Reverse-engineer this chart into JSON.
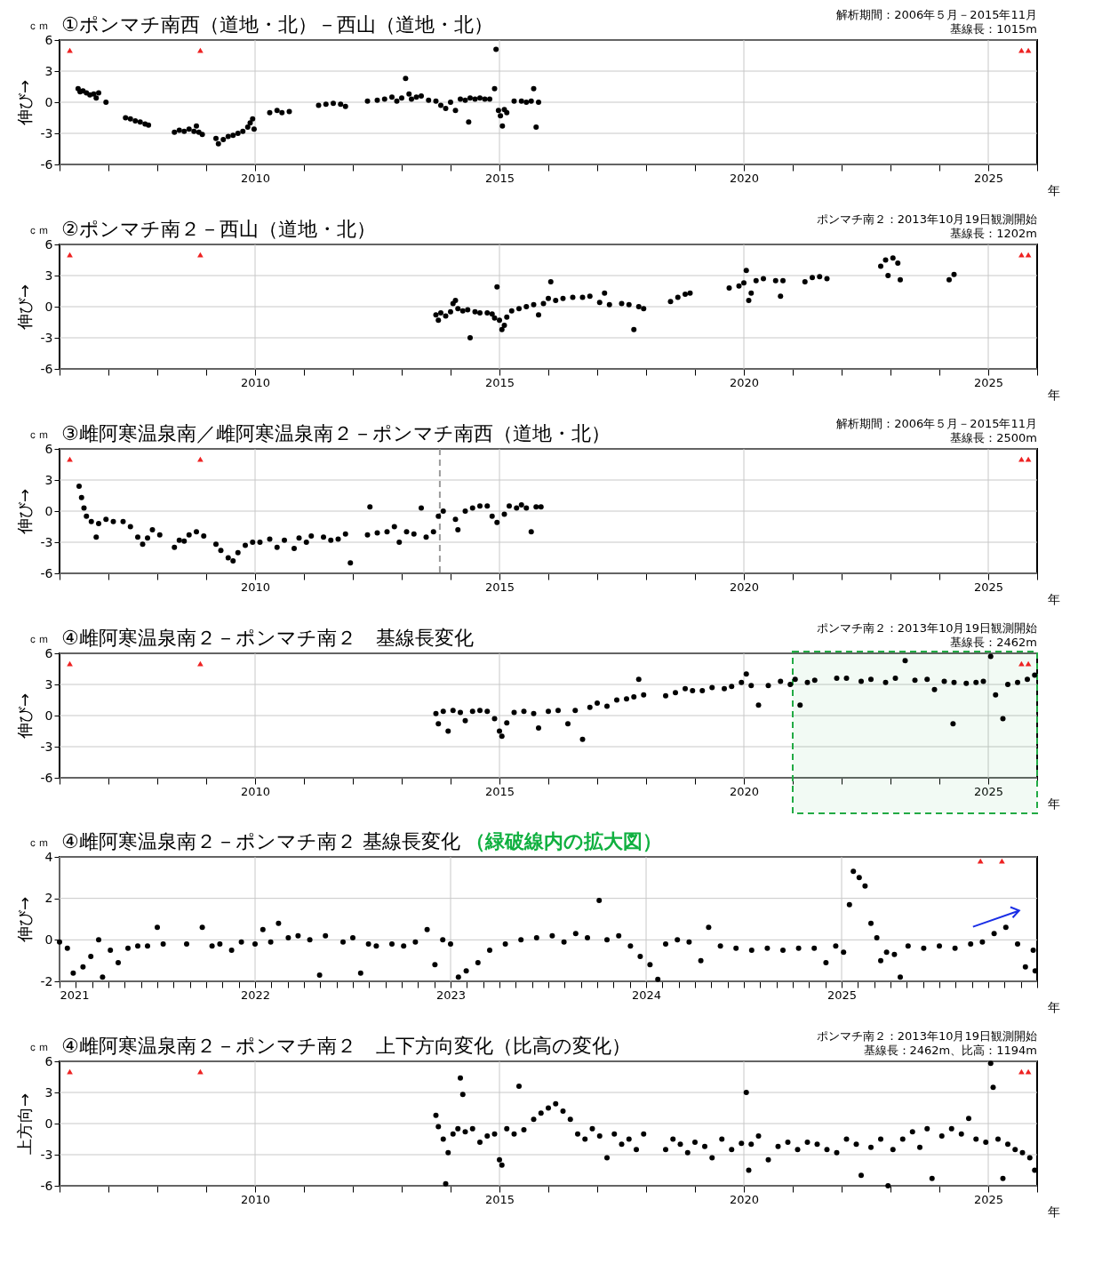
{
  "chart_data": [
    {
      "type": "scatter",
      "title": "①ポンマチ南西（道地・北）－西山（道地・北）",
      "annotations": [
        "ｃｍ",
        "解析期間：2006年５月－2015年11月",
        "基線長：1015m"
      ],
      "xlabel": "年",
      "ylabel": "伸び→",
      "xlim": [
        2006,
        2026
      ],
      "ylim": [
        -6,
        6
      ],
      "yticks": [
        -6,
        -3,
        0,
        3,
        6
      ],
      "grid": true,
      "marker": "circle",
      "xticks": [
        {
          "value": 2006,
          "label": null
        },
        {
          "value": 2007,
          "label": null
        },
        {
          "value": 2008,
          "label": null
        },
        {
          "value": 2009,
          "label": null
        },
        2010,
        {
          "value": 2011,
          "label": null
        },
        {
          "value": 2012,
          "label": null
        },
        {
          "value": 2013,
          "label": null
        },
        {
          "value": 2014,
          "label": null
        },
        2015,
        {
          "value": 2016,
          "label": null
        },
        {
          "value": 2017,
          "label": null
        },
        {
          "value": 2018,
          "label": null
        },
        {
          "value": 2019,
          "label": null
        },
        2020,
        {
          "value": 2021,
          "label": null
        },
        {
          "value": 2022,
          "label": null
        },
        {
          "value": 2023,
          "label": null
        },
        {
          "value": 2024,
          "label": null
        },
        2025,
        {
          "value": 2026,
          "label": null
        }
      ],
      "series": [
        {
          "color": "#000000",
          "x": [
            2006.38,
            2006.42,
            2006.48,
            2006.55,
            2006.62,
            2006.7,
            2006.75,
            2006.8,
            2006.95,
            2007.35,
            2007.45,
            2007.55,
            2007.65,
            2007.75,
            2007.82,
            2008.35,
            2008.45,
            2008.55,
            2008.65,
            2008.75,
            2008.8,
            2008.85,
            2008.92,
            2009.2,
            2009.25,
            2009.35,
            2009.45,
            2009.55,
            2009.65,
            2009.75,
            2009.85,
            2009.9,
            2009.95,
            2009.98,
            2010.3,
            2010.45,
            2010.55,
            2010.7,
            2011.3,
            2011.45,
            2011.6,
            2011.75,
            2011.85,
            2012.3,
            2012.5,
            2012.65,
            2012.8,
            2012.9,
            2013.0,
            2013.08,
            2013.15,
            2013.2,
            2013.3,
            2013.4,
            2013.55,
            2013.7,
            2013.8,
            2013.9,
            2014.0,
            2014.1,
            2014.2,
            2014.3,
            2014.37,
            2014.4,
            2014.5,
            2014.6,
            2014.7,
            2014.8,
            2014.9,
            2014.93,
            2014.98,
            2015.02,
            2015.06,
            2015.1,
            2015.15,
            2015.3,
            2015.45,
            2015.55,
            2015.65,
            2015.7,
            2015.75,
            2015.8
          ],
          "values": [
            1.3,
            1.0,
            1.1,
            0.9,
            0.7,
            0.8,
            0.4,
            0.9,
            0.0,
            -1.5,
            -1.6,
            -1.8,
            -1.9,
            -2.1,
            -2.2,
            -2.9,
            -2.7,
            -2.8,
            -2.6,
            -2.8,
            -2.3,
            -2.9,
            -3.1,
            -3.5,
            -4.0,
            -3.6,
            -3.3,
            -3.2,
            -3.0,
            -2.8,
            -2.4,
            -2.0,
            -1.6,
            -2.6,
            -1.0,
            -0.8,
            -1.0,
            -0.9,
            -0.3,
            -0.2,
            -0.1,
            -0.2,
            -0.4,
            0.1,
            0.2,
            0.3,
            0.5,
            0.1,
            0.4,
            2.3,
            0.8,
            0.3,
            0.5,
            0.6,
            0.2,
            0.1,
            -0.3,
            -0.6,
            0.0,
            -0.8,
            0.3,
            0.2,
            -1.9,
            0.4,
            0.3,
            0.4,
            0.3,
            0.3,
            1.3,
            5.1,
            -0.8,
            -1.3,
            -2.3,
            -0.7,
            -1.0,
            0.1,
            0.1,
            0.0,
            0.1,
            1.3,
            -2.4,
            0.0
          ]
        },
        {
          "color": "#ee2222",
          "marker": "triangle",
          "x": [
            2006.21,
            2008.88,
            2025.68,
            2025.82
          ],
          "values": [
            5,
            5,
            5,
            5
          ]
        }
      ]
    },
    {
      "type": "scatter",
      "title": "②ポンマチ南２－西山（道地・北）",
      "annotations": [
        "ｃｍ",
        "ポンマチ南２：2013年10月19日観測開始",
        "基線長：1202m"
      ],
      "xlabel": "年",
      "ylabel": "伸び→",
      "xlim": [
        2006,
        2026
      ],
      "ylim": [
        -6,
        6
      ],
      "yticks": [
        -6,
        -3,
        0,
        3,
        6
      ],
      "grid": true,
      "marker": "circle",
      "xticks": [
        {
          "value": 2006,
          "label": null
        },
        {
          "value": 2007,
          "label": null
        },
        {
          "value": 2008,
          "label": null
        },
        {
          "value": 2009,
          "label": null
        },
        2010,
        {
          "value": 2011,
          "label": null
        },
        {
          "value": 2012,
          "label": null
        },
        {
          "value": 2013,
          "label": null
        },
        {
          "value": 2014,
          "label": null
        },
        2015,
        {
          "value": 2016,
          "label": null
        },
        {
          "value": 2017,
          "label": null
        },
        {
          "value": 2018,
          "label": null
        },
        {
          "value": 2019,
          "label": null
        },
        2020,
        {
          "value": 2021,
          "label": null
        },
        {
          "value": 2022,
          "label": null
        },
        {
          "value": 2023,
          "label": null
        },
        {
          "value": 2024,
          "label": null
        },
        2025,
        {
          "value": 2026,
          "label": null
        }
      ],
      "series": [
        {
          "color": "#000000",
          "x": [
            2013.7,
            2013.75,
            2013.8,
            2013.9,
            2014.0,
            2014.05,
            2014.1,
            2014.15,
            2014.25,
            2014.35,
            2014.4,
            2014.5,
            2014.6,
            2014.75,
            2014.85,
            2014.9,
            2014.95,
            2015.0,
            2015.05,
            2015.1,
            2015.15,
            2015.25,
            2015.4,
            2015.55,
            2015.7,
            2015.8,
            2015.9,
            2016.0,
            2016.05,
            2016.15,
            2016.3,
            2016.5,
            2016.7,
            2016.85,
            2017.05,
            2017.15,
            2017.25,
            2017.5,
            2017.65,
            2017.75,
            2017.85,
            2017.95,
            2018.5,
            2018.65,
            2018.8,
            2018.9,
            2019.7,
            2019.9,
            2020.0,
            2020.05,
            2020.1,
            2020.15,
            2020.25,
            2020.4,
            2020.65,
            2020.75,
            2020.8,
            2021.25,
            2021.4,
            2021.55,
            2021.7,
            2022.8,
            2022.9,
            2022.95,
            2023.05,
            2023.15,
            2023.2,
            2024.2,
            2024.3
          ],
          "values": [
            -0.8,
            -1.3,
            -0.6,
            -0.9,
            -0.5,
            0.3,
            0.6,
            -0.2,
            -0.4,
            -0.3,
            -3.0,
            -0.5,
            -0.6,
            -0.6,
            -0.7,
            -1.1,
            1.9,
            -1.3,
            -2.2,
            -1.8,
            -1.0,
            -0.4,
            -0.2,
            0.0,
            0.2,
            -0.8,
            0.3,
            0.8,
            2.4,
            0.6,
            0.8,
            0.9,
            0.9,
            1.0,
            0.4,
            1.3,
            0.2,
            0.3,
            0.2,
            -2.2,
            0.0,
            -0.2,
            0.5,
            0.9,
            1.2,
            1.3,
            1.8,
            2.0,
            2.3,
            3.5,
            0.6,
            1.3,
            2.5,
            2.7,
            2.5,
            1.0,
            2.5,
            2.4,
            2.8,
            2.9,
            2.7,
            3.9,
            4.5,
            3.0,
            4.7,
            4.2,
            2.6,
            2.6,
            3.1
          ]
        },
        {
          "color": "#ee2222",
          "marker": "triangle",
          "x": [
            2006.21,
            2008.88,
            2025.68,
            2025.82
          ],
          "values": [
            5,
            5,
            5,
            5
          ]
        }
      ]
    },
    {
      "type": "scatter",
      "title": "③雌阿寒温泉南／雌阿寒温泉南２－ポンマチ南西（道地・北）",
      "annotations": [
        "ｃｍ",
        "解析期間：2006年５月－2015年11月",
        "基線長：2500m"
      ],
      "xlabel": "年",
      "ylabel": "伸び→",
      "xlim": [
        2006,
        2026
      ],
      "ylim": [
        -6,
        6
      ],
      "yticks": [
        -6,
        -3,
        0,
        3,
        6
      ],
      "grid": true,
      "marker": "circle",
      "xticks": [
        {
          "value": 2006,
          "label": null
        },
        {
          "value": 2007,
          "label": null
        },
        {
          "value": 2008,
          "label": null
        },
        {
          "value": 2009,
          "label": null
        },
        2010,
        {
          "value": 2011,
          "label": null
        },
        {
          "value": 2012,
          "label": null
        },
        {
          "value": 2013,
          "label": null
        },
        {
          "value": 2014,
          "label": null
        },
        2015,
        {
          "value": 2016,
          "label": null
        },
        {
          "value": 2017,
          "label": null
        },
        {
          "value": 2018,
          "label": null
        },
        {
          "value": 2019,
          "label": null
        },
        2020,
        {
          "value": 2021,
          "label": null
        },
        {
          "value": 2022,
          "label": null
        },
        {
          "value": 2023,
          "label": null
        },
        {
          "value": 2024,
          "label": null
        },
        2025,
        {
          "value": 2026,
          "label": null
        }
      ],
      "ref_lines": [
        {
          "axis": "x",
          "value": 2013.78,
          "color": "#999999",
          "line_style": "dashed"
        }
      ],
      "series": [
        {
          "color": "#000000",
          "x": [
            2006.4,
            2006.45,
            2006.5,
            2006.55,
            2006.65,
            2006.75,
            2006.8,
            2006.95,
            2007.1,
            2007.3,
            2007.45,
            2007.6,
            2007.7,
            2007.8,
            2007.9,
            2008.05,
            2008.35,
            2008.45,
            2008.55,
            2008.65,
            2008.8,
            2008.95,
            2009.2,
            2009.3,
            2009.45,
            2009.55,
            2009.65,
            2009.8,
            2009.95,
            2010.1,
            2010.3,
            2010.45,
            2010.6,
            2010.8,
            2010.9,
            2011.05,
            2011.15,
            2011.4,
            2011.55,
            2011.7,
            2011.85,
            2011.95,
            2012.3,
            2012.35,
            2012.5,
            2012.7,
            2012.85,
            2012.95,
            2013.1,
            2013.25,
            2013.4,
            2013.5,
            2013.65,
            2013.75,
            2013.85,
            2014.1,
            2014.15,
            2014.3,
            2014.45,
            2014.6,
            2014.75,
            2014.85,
            2014.95,
            2015.1,
            2015.2,
            2015.35,
            2015.45,
            2015.55,
            2015.65,
            2015.75,
            2015.85
          ],
          "values": [
            2.4,
            1.3,
            0.3,
            -0.5,
            -1.0,
            -2.5,
            -1.2,
            -0.8,
            -1.0,
            -1.0,
            -1.5,
            -2.5,
            -3.2,
            -2.6,
            -1.8,
            -2.3,
            -3.5,
            -2.8,
            -2.9,
            -2.3,
            -2.0,
            -2.4,
            -3.2,
            -3.8,
            -4.5,
            -4.8,
            -4.0,
            -3.3,
            -3.0,
            -3.0,
            -2.7,
            -3.5,
            -2.8,
            -3.6,
            -2.6,
            -3.0,
            -2.4,
            -2.5,
            -2.8,
            -2.7,
            -2.2,
            -5.0,
            -2.3,
            0.4,
            -2.1,
            -2.0,
            -1.5,
            -3.0,
            -2.0,
            -2.2,
            0.3,
            -2.5,
            -2.0,
            -0.5,
            0.0,
            -0.8,
            -1.8,
            0.0,
            0.3,
            0.5,
            0.5,
            -0.5,
            -1.1,
            -0.3,
            0.5,
            0.3,
            0.6,
            0.3,
            -2.0,
            0.4,
            0.4
          ]
        },
        {
          "color": "#ee2222",
          "marker": "triangle",
          "x": [
            2006.21,
            2008.88,
            2025.68,
            2025.82
          ],
          "values": [
            5,
            5,
            5,
            5
          ]
        }
      ]
    },
    {
      "type": "scatter",
      "title": "④雌阿寒温泉南２－ポンマチ南２　基線長変化",
      "annotations": [
        "ｃｍ",
        "ポンマチ南２：2013年10月19日観測開始",
        "基線長：2462m"
      ],
      "xlabel": "年",
      "ylabel": "伸び→",
      "xlim": [
        2006,
        2026
      ],
      "ylim": [
        -6,
        6
      ],
      "yticks": [
        -6,
        -3,
        0,
        3,
        6
      ],
      "grid": true,
      "marker": "circle",
      "xticks": [
        {
          "value": 2006,
          "label": null
        },
        {
          "value": 2007,
          "label": null
        },
        {
          "value": 2008,
          "label": null
        },
        {
          "value": 2009,
          "label": null
        },
        2010,
        {
          "value": 2011,
          "label": null
        },
        {
          "value": 2012,
          "label": null
        },
        {
          "value": 2013,
          "label": null
        },
        {
          "value": 2014,
          "label": null
        },
        2015,
        {
          "value": 2016,
          "label": null
        },
        {
          "value": 2017,
          "label": null
        },
        {
          "value": 2018,
          "label": null
        },
        {
          "value": 2019,
          "label": null
        },
        2020,
        {
          "value": 2021,
          "label": null
        },
        {
          "value": 2022,
          "label": null
        },
        {
          "value": 2023,
          "label": null
        },
        {
          "value": 2024,
          "label": null
        },
        2025,
        {
          "value": 2026,
          "label": null
        }
      ],
      "bands": [
        {
          "axis": "x",
          "from": 2021,
          "to": 2026,
          "color": "#22aa44"
        }
      ],
      "series": [
        {
          "color": "#000000",
          "x": [
            2013.7,
            2013.75,
            2013.85,
            2013.95,
            2014.05,
            2014.2,
            2014.3,
            2014.45,
            2014.6,
            2014.75,
            2014.9,
            2015.0,
            2015.05,
            2015.15,
            2015.3,
            2015.5,
            2015.7,
            2015.8,
            2016.0,
            2016.2,
            2016.4,
            2016.55,
            2016.7,
            2016.85,
            2017.0,
            2017.2,
            2017.4,
            2017.6,
            2017.75,
            2017.85,
            2017.95,
            2018.4,
            2018.6,
            2018.8,
            2018.95,
            2019.15,
            2019.35,
            2019.6,
            2019.75,
            2019.95,
            2020.05,
            2020.15,
            2020.3,
            2020.5,
            2020.75,
            2020.95,
            2021.05,
            2021.15,
            2021.3,
            2021.45,
            2021.9,
            2022.1,
            2022.4,
            2022.6,
            2022.9,
            2023.1,
            2023.3,
            2023.5,
            2023.75,
            2023.9,
            2024.1,
            2024.28,
            2024.3,
            2024.55,
            2024.75,
            2024.9,
            2025.05,
            2025.15,
            2025.3,
            2025.4,
            2025.6,
            2025.8,
            2025.95
          ],
          "values": [
            0.2,
            -0.8,
            0.4,
            -1.5,
            0.5,
            0.3,
            -0.5,
            0.4,
            0.5,
            0.4,
            -0.3,
            -1.5,
            -2.0,
            -0.7,
            0.3,
            0.4,
            0.2,
            -1.2,
            0.4,
            0.5,
            -0.8,
            0.5,
            -2.3,
            0.8,
            1.2,
            0.9,
            1.5,
            1.6,
            1.8,
            3.5,
            2.0,
            1.9,
            2.2,
            2.6,
            2.4,
            2.4,
            2.7,
            2.6,
            2.8,
            3.2,
            4.0,
            2.9,
            1.0,
            2.9,
            3.3,
            3.0,
            3.5,
            1.0,
            3.2,
            3.4,
            3.6,
            3.6,
            3.3,
            3.5,
            3.2,
            3.6,
            5.3,
            3.4,
            3.5,
            2.5,
            3.3,
            -0.8,
            3.2,
            3.1,
            3.2,
            3.3,
            5.7,
            2.0,
            -0.3,
            3.0,
            3.2,
            3.5,
            3.9
          ]
        },
        {
          "color": "#ee2222",
          "marker": "triangle",
          "x": [
            2006.21,
            2008.88,
            2025.68,
            2025.82
          ],
          "values": [
            5,
            5,
            5,
            5
          ]
        }
      ]
    },
    {
      "type": "scatter",
      "title": "④雌阿寒温泉南２－ポンマチ南２ 基線長変化",
      "subtitle": "（緑破線内の拡大図）",
      "annotations": [
        "ｃｍ"
      ],
      "xlabel": "年",
      "ylabel": "伸び→",
      "xlim": [
        2021,
        2026
      ],
      "ylim": [
        -2,
        4
      ],
      "yticks": [
        -2,
        0,
        2,
        4
      ],
      "grid": true,
      "marker": "circle",
      "xticks": [
        2021,
        {
          "value": 2021.083,
          "label": null
        },
        {
          "value": 2021.167,
          "label": null
        },
        {
          "value": 2021.25,
          "label": null
        },
        {
          "value": 2021.333,
          "label": null
        },
        {
          "value": 2021.417,
          "label": null
        },
        {
          "value": 2021.5,
          "label": null
        },
        {
          "value": 2021.583,
          "label": null
        },
        {
          "value": 2021.667,
          "label": null
        },
        {
          "value": 2021.75,
          "label": null
        },
        {
          "value": 2021.833,
          "label": null
        },
        {
          "value": 2021.917,
          "label": null
        },
        2022,
        {
          "value": 2022.083,
          "label": null
        },
        {
          "value": 2022.167,
          "label": null
        },
        {
          "value": 2022.25,
          "label": null
        },
        {
          "value": 2022.333,
          "label": null
        },
        {
          "value": 2022.417,
          "label": null
        },
        {
          "value": 2022.5,
          "label": null
        },
        {
          "value": 2022.583,
          "label": null
        },
        {
          "value": 2022.667,
          "label": null
        },
        {
          "value": 2022.75,
          "label": null
        },
        {
          "value": 2022.833,
          "label": null
        },
        {
          "value": 2022.917,
          "label": null
        },
        2023,
        {
          "value": 2023.083,
          "label": null
        },
        {
          "value": 2023.167,
          "label": null
        },
        {
          "value": 2023.25,
          "label": null
        },
        {
          "value": 2023.333,
          "label": null
        },
        {
          "value": 2023.417,
          "label": null
        },
        {
          "value": 2023.5,
          "label": null
        },
        {
          "value": 2023.583,
          "label": null
        },
        {
          "value": 2023.667,
          "label": null
        },
        {
          "value": 2023.75,
          "label": null
        },
        {
          "value": 2023.833,
          "label": null
        },
        {
          "value": 2023.917,
          "label": null
        },
        2024,
        {
          "value": 2024.083,
          "label": null
        },
        {
          "value": 2024.167,
          "label": null
        },
        {
          "value": 2024.25,
          "label": null
        },
        {
          "value": 2024.333,
          "label": null
        },
        {
          "value": 2024.417,
          "label": null
        },
        {
          "value": 2024.5,
          "label": null
        },
        {
          "value": 2024.583,
          "label": null
        },
        {
          "value": 2024.667,
          "label": null
        },
        {
          "value": 2024.75,
          "label": null
        },
        {
          "value": 2024.833,
          "label": null
        },
        {
          "value": 2024.917,
          "label": null
        },
        2025,
        {
          "value": 2025.083,
          "label": null
        },
        {
          "value": 2025.167,
          "label": null
        },
        {
          "value": 2025.25,
          "label": null
        },
        {
          "value": 2025.333,
          "label": null
        },
        {
          "value": 2025.417,
          "label": null
        },
        {
          "value": 2025.5,
          "label": null
        },
        {
          "value": 2025.583,
          "label": null
        },
        {
          "value": 2025.667,
          "label": null
        },
        {
          "value": 2025.75,
          "label": null
        },
        {
          "value": 2025.833,
          "label": null
        },
        {
          "value": 2025.917,
          "label": null
        },
        {
          "value": 2026,
          "label": null
        }
      ],
      "series": [
        {
          "color": "#000000",
          "x": [
            2021.0,
            2021.04,
            2021.07,
            2021.12,
            2021.16,
            2021.2,
            2021.22,
            2021.26,
            2021.3,
            2021.35,
            2021.4,
            2021.45,
            2021.5,
            2021.53,
            2021.65,
            2021.73,
            2021.78,
            2021.82,
            2021.88,
            2021.93,
            2022.0,
            2022.04,
            2022.08,
            2022.12,
            2022.17,
            2022.22,
            2022.28,
            2022.33,
            2022.36,
            2022.45,
            2022.5,
            2022.54,
            2022.58,
            2022.62,
            2022.7,
            2022.76,
            2022.82,
            2022.88,
            2022.92,
            2022.96,
            2023.0,
            2023.04,
            2023.08,
            2023.14,
            2023.2,
            2023.28,
            2023.36,
            2023.44,
            2023.52,
            2023.58,
            2023.64,
            2023.7,
            2023.76,
            2023.8,
            2023.86,
            2023.92,
            2023.97,
            2024.02,
            2024.06,
            2024.1,
            2024.16,
            2024.22,
            2024.28,
            2024.32,
            2024.38,
            2024.46,
            2024.54,
            2024.62,
            2024.7,
            2024.78,
            2024.86,
            2024.92,
            2024.97,
            2025.01,
            2025.04,
            2025.06,
            2025.09,
            2025.12,
            2025.15,
            2025.18,
            2025.2,
            2025.23,
            2025.27,
            2025.3,
            2025.34,
            2025.42,
            2025.5,
            2025.58,
            2025.66,
            2025.72,
            2025.78,
            2025.84,
            2025.9,
            2025.94,
            2025.98,
            2025.99
          ],
          "values": [
            -0.1,
            -0.4,
            -1.6,
            -1.3,
            -0.8,
            0.0,
            -1.8,
            -0.5,
            -1.1,
            -0.4,
            -0.3,
            -0.3,
            0.6,
            -0.2,
            -0.2,
            0.6,
            -0.3,
            -0.2,
            -0.5,
            -0.1,
            -0.2,
            0.5,
            -0.1,
            0.8,
            0.1,
            0.2,
            0.0,
            -1.7,
            0.2,
            -0.1,
            0.1,
            -1.6,
            -0.2,
            -0.3,
            -0.2,
            -0.3,
            -0.1,
            0.5,
            -1.2,
            0.0,
            -0.2,
            -1.8,
            -1.5,
            -1.1,
            -0.5,
            -0.2,
            0.0,
            0.1,
            0.2,
            -0.1,
            0.3,
            0.1,
            1.9,
            0.0,
            0.2,
            -0.3,
            -0.8,
            -1.2,
            -1.9,
            -0.2,
            0.0,
            -0.1,
            -1.0,
            0.6,
            -0.3,
            -0.4,
            -0.5,
            -0.4,
            -0.5,
            -0.4,
            -0.4,
            -1.1,
            -0.3,
            -0.6,
            1.7,
            3.3,
            3.0,
            2.6,
            0.8,
            0.1,
            -1.0,
            -0.6,
            -0.7,
            -1.8,
            -0.3,
            -0.4,
            -0.3,
            -0.4,
            -0.2,
            -0.1,
            0.3,
            0.6,
            -0.2,
            -1.3,
            -0.5,
            -1.5
          ]
        },
        {
          "color": "#ee2222",
          "marker": "triangle",
          "x": [
            2025.71,
            2025.82
          ],
          "values": [
            3.8,
            3.8
          ]
        }
      ]
    },
    {
      "type": "scatter",
      "title": "④雌阿寒温泉南２－ポンマチ南２　上下方向変化（比高の変化）",
      "annotations": [
        "ｃｍ",
        "ポンマチ南２：2013年10月19日観測開始",
        "基線長：2462m、比高：1194m"
      ],
      "xlabel": "年",
      "ylabel": "上方向→",
      "xlim": [
        2006,
        2026
      ],
      "ylim": [
        -6,
        6
      ],
      "yticks": [
        -6,
        -3,
        0,
        3,
        6
      ],
      "grid": true,
      "marker": "circle",
      "xticks": [
        {
          "value": 2006,
          "label": null
        },
        {
          "value": 2007,
          "label": null
        },
        {
          "value": 2008,
          "label": null
        },
        {
          "value": 2009,
          "label": null
        },
        2010,
        {
          "value": 2011,
          "label": null
        },
        {
          "value": 2012,
          "label": null
        },
        {
          "value": 2013,
          "label": null
        },
        {
          "value": 2014,
          "label": null
        },
        2015,
        {
          "value": 2016,
          "label": null
        },
        {
          "value": 2017,
          "label": null
        },
        {
          "value": 2018,
          "label": null
        },
        {
          "value": 2019,
          "label": null
        },
        2020,
        {
          "value": 2021,
          "label": null
        },
        {
          "value": 2022,
          "label": null
        },
        {
          "value": 2023,
          "label": null
        },
        {
          "value": 2024,
          "label": null
        },
        2025,
        {
          "value": 2026,
          "label": null
        }
      ],
      "series": [
        {
          "color": "#000000",
          "x": [
            2013.7,
            2013.75,
            2013.85,
            2013.9,
            2013.95,
            2014.05,
            2014.15,
            2014.2,
            2014.25,
            2014.3,
            2014.45,
            2014.6,
            2014.75,
            2014.9,
            2015.0,
            2015.05,
            2015.15,
            2015.3,
            2015.4,
            2015.5,
            2015.7,
            2015.85,
            2016.0,
            2016.15,
            2016.3,
            2016.45,
            2016.6,
            2016.75,
            2016.9,
            2017.05,
            2017.2,
            2017.35,
            2017.5,
            2017.65,
            2017.8,
            2017.95,
            2018.4,
            2018.55,
            2018.7,
            2018.85,
            2019.0,
            2019.2,
            2019.35,
            2019.55,
            2019.75,
            2019.95,
            2020.05,
            2020.1,
            2020.15,
            2020.3,
            2020.5,
            2020.7,
            2020.9,
            2021.1,
            2021.3,
            2021.5,
            2021.7,
            2021.9,
            2022.1,
            2022.3,
            2022.4,
            2022.6,
            2022.8,
            2022.95,
            2023.05,
            2023.25,
            2023.45,
            2023.6,
            2023.75,
            2023.85,
            2024.05,
            2024.25,
            2024.45,
            2024.6,
            2024.75,
            2024.95,
            2025.05,
            2025.1,
            2025.2,
            2025.3,
            2025.4,
            2025.55,
            2025.7,
            2025.85,
            2025.95
          ],
          "values": [
            0.8,
            -0.3,
            -1.5,
            -5.8,
            -2.8,
            -1.0,
            -0.5,
            4.4,
            2.8,
            -0.8,
            -0.5,
            -1.8,
            -1.2,
            -1.0,
            -3.5,
            -4.0,
            -0.5,
            -1.0,
            3.6,
            -0.6,
            0.4,
            1.0,
            1.5,
            1.9,
            1.2,
            0.4,
            -1.0,
            -1.5,
            -0.5,
            -1.2,
            -3.3,
            -1.0,
            -2.0,
            -1.5,
            -2.5,
            -1.0,
            -2.5,
            -1.5,
            -2.0,
            -2.8,
            -1.8,
            -2.2,
            -3.3,
            -1.5,
            -2.5,
            -1.9,
            3.0,
            -4.5,
            -2.0,
            -1.2,
            -3.5,
            -2.2,
            -1.8,
            -2.5,
            -1.8,
            -2.0,
            -2.5,
            -2.8,
            -1.5,
            -2.0,
            -5.0,
            -2.3,
            -1.5,
            -6.0,
            -2.5,
            -1.5,
            -0.8,
            -2.3,
            -0.5,
            -5.3,
            -1.2,
            -0.5,
            -1.0,
            0.5,
            -1.5,
            -1.8,
            5.8,
            3.5,
            -1.5,
            -5.3,
            -2.0,
            -2.5,
            -2.8,
            -3.3,
            -4.5
          ]
        },
        {
          "color": "#ee2222",
          "marker": "triangle",
          "x": [
            2006.21,
            2008.88,
            2025.68,
            2025.82
          ],
          "values": [
            5,
            5,
            5,
            5
          ]
        }
      ]
    }
  ]
}
